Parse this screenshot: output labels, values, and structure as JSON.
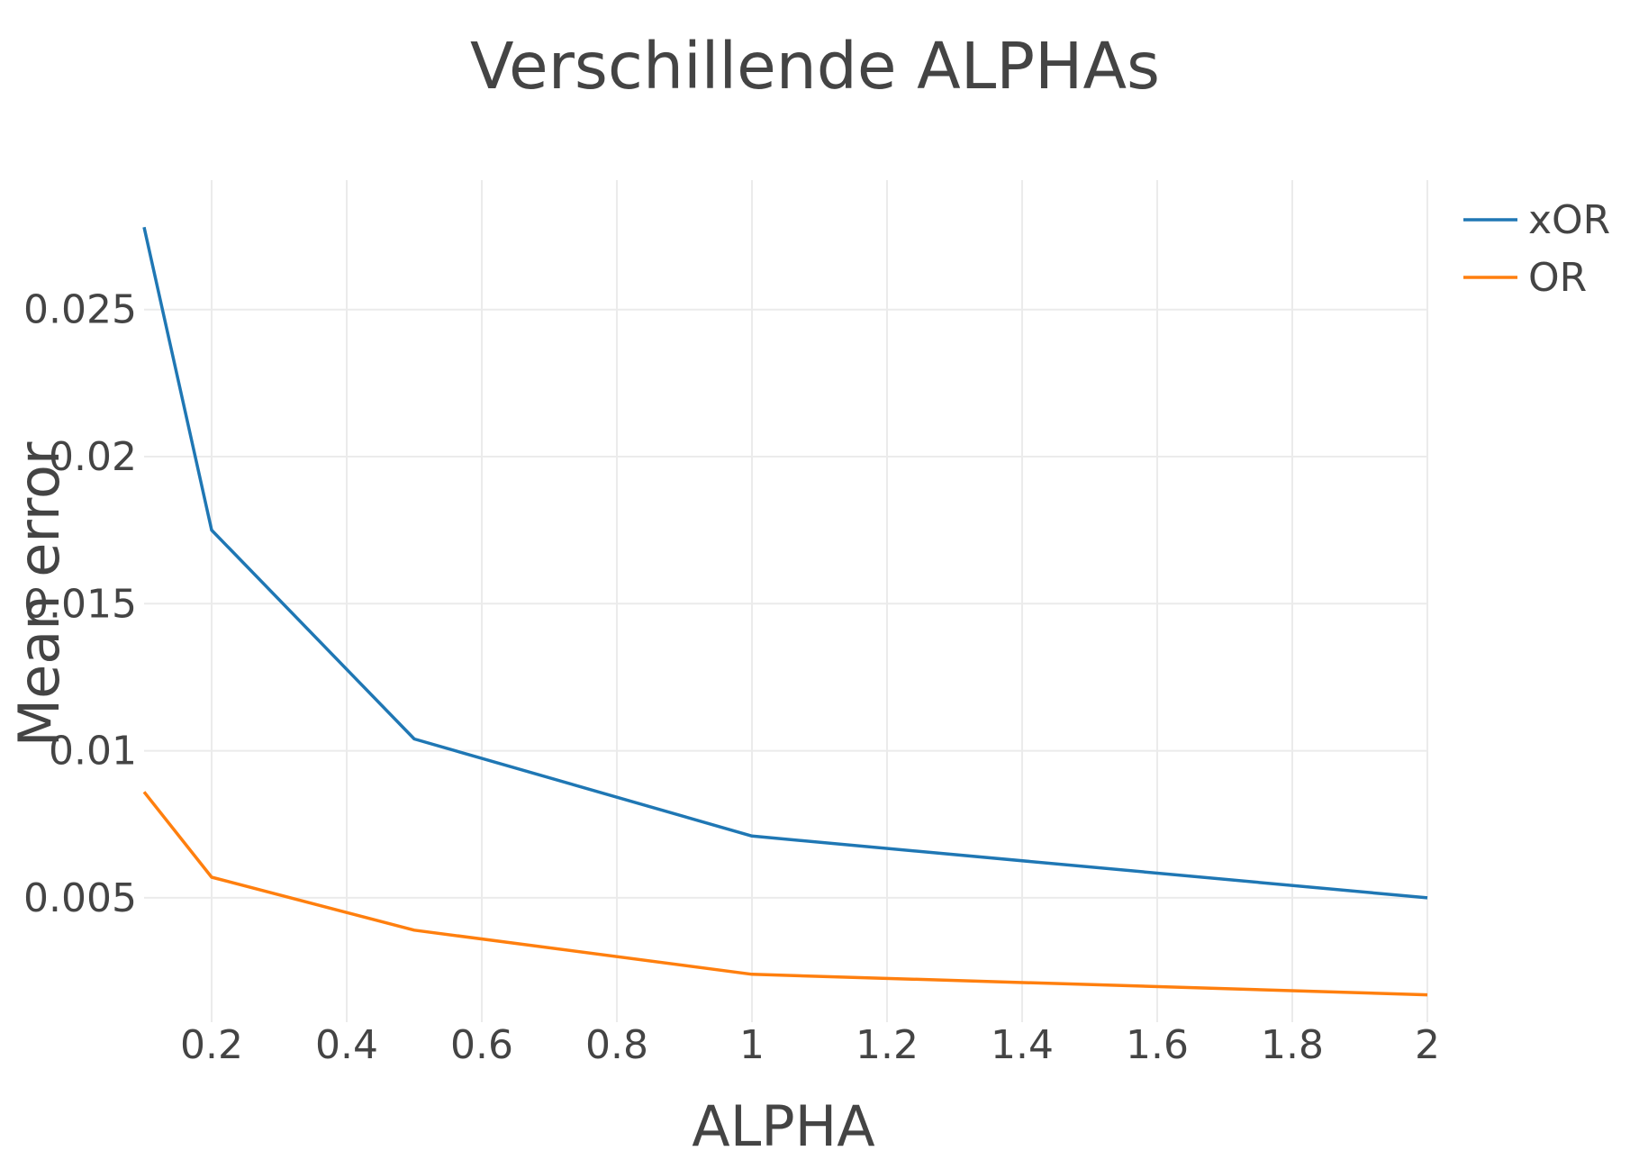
{
  "chart_data": {
    "type": "line",
    "title": "Verschillende ALPHAs",
    "xlabel": "ALPHA",
    "ylabel": "Mean error",
    "xlim": [
      0.1,
      2
    ],
    "ylim": [
      0.00077,
      0.0294
    ],
    "xticks": [
      0.2,
      0.4,
      0.6,
      0.8,
      1,
      1.2,
      1.4,
      1.6,
      1.8,
      2
    ],
    "xtick_labels": [
      "0.2",
      "0.4",
      "0.6",
      "0.8",
      "1",
      "1.2",
      "1.4",
      "1.6",
      "1.8",
      "2"
    ],
    "yticks": [
      0.005,
      0.01,
      0.015,
      0.02,
      0.025
    ],
    "ytick_labels": [
      "0.005",
      "0.01",
      "0.015",
      "0.02",
      "0.025"
    ],
    "grid": true,
    "legend_position": "top-right",
    "x": [
      0.1,
      0.2,
      0.5,
      1,
      2
    ],
    "series": [
      {
        "name": "xOR",
        "color": "#1f77b4",
        "values": [
          0.0278,
          0.0175,
          0.0104,
          0.0071,
          0.005
        ]
      },
      {
        "name": "OR",
        "color": "#ff7f0e",
        "values": [
          0.0086,
          0.0057,
          0.0039,
          0.0024,
          0.0017
        ]
      }
    ]
  }
}
